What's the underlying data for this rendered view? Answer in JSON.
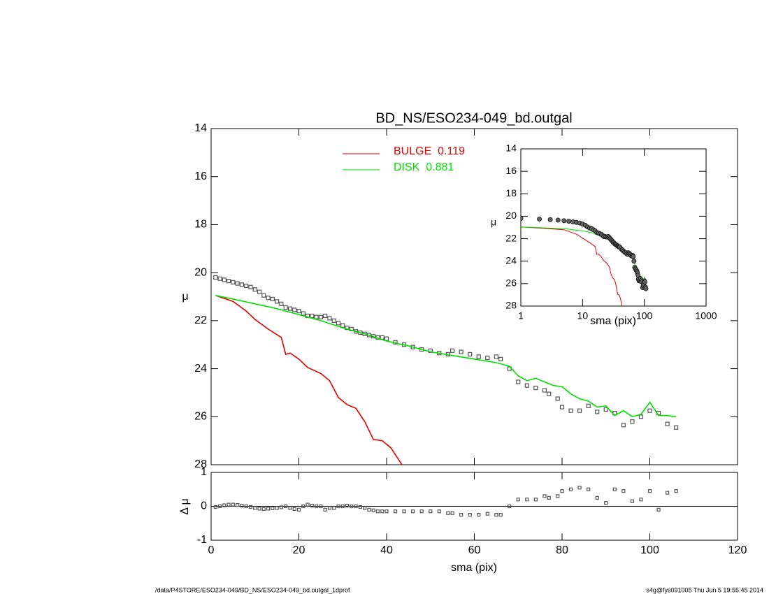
{
  "chart_data": [
    {
      "type": "line",
      "title": "BD_NS/ESO234-049_bd.outgal",
      "ylabel": "μ",
      "xlim": [
        0,
        120
      ],
      "xticks": [
        0,
        20,
        40,
        60,
        80,
        100,
        120
      ],
      "xtick_labels": false,
      "ylim": [
        14,
        28
      ],
      "yticks": [
        14,
        16,
        18,
        20,
        22,
        24,
        26,
        28
      ],
      "y_inverted": true,
      "series": [
        {
          "marker": "square",
          "color": "#555555",
          "x": [
            1,
            2,
            3,
            4,
            5,
            6,
            7,
            8,
            9,
            10,
            11,
            12,
            13,
            14,
            15,
            16,
            17,
            18,
            19,
            20,
            21,
            22,
            23,
            24,
            25,
            26,
            27,
            28,
            29,
            30,
            31,
            32,
            33,
            34,
            35,
            36,
            37,
            38,
            39,
            40,
            42,
            44,
            46,
            48,
            50,
            52,
            54,
            55,
            57,
            59,
            61,
            63,
            65,
            66,
            68,
            70,
            72,
            74,
            76,
            77,
            79,
            80,
            82,
            84,
            86,
            88,
            90,
            92,
            94,
            96,
            98,
            100,
            102,
            104,
            106
          ],
          "values": [
            20.2,
            20.25,
            20.3,
            20.35,
            20.4,
            20.45,
            20.5,
            20.55,
            20.6,
            20.7,
            20.8,
            20.95,
            21.05,
            21.1,
            21.2,
            21.3,
            21.45,
            21.5,
            21.55,
            21.6,
            21.7,
            21.8,
            21.8,
            21.85,
            21.85,
            21.8,
            21.9,
            22.0,
            22.1,
            22.2,
            22.3,
            22.35,
            22.45,
            22.5,
            22.55,
            22.6,
            22.65,
            22.7,
            22.7,
            22.75,
            22.9,
            23.0,
            23.1,
            23.2,
            23.25,
            23.35,
            23.4,
            23.25,
            23.3,
            23.4,
            23.5,
            23.55,
            23.5,
            23.6,
            24.0,
            24.55,
            24.7,
            24.8,
            24.9,
            25.05,
            25.25,
            25.6,
            25.75,
            25.75,
            25.55,
            25.8,
            25.7,
            25.85,
            26.35,
            26.2,
            26.0,
            25.75,
            25.85,
            26.3,
            26.45
          ]
        },
        {
          "name": "BULGE  0.119",
          "color": "#e00000",
          "x": [
            1,
            5,
            8,
            10,
            13,
            16,
            17,
            18,
            20,
            22,
            25,
            27,
            29,
            31,
            33,
            35,
            37,
            39,
            41,
            43.5
          ],
          "values": [
            20.95,
            21.2,
            21.6,
            21.95,
            22.35,
            22.7,
            23.4,
            23.35,
            23.6,
            23.95,
            24.2,
            24.5,
            25.2,
            25.5,
            25.65,
            26.2,
            26.95,
            27.0,
            27.3,
            28.0
          ]
        },
        {
          "name": "DISK  0.881",
          "color": "#00e000",
          "x": [
            1,
            5,
            10,
            15,
            20,
            25,
            30,
            35,
            40,
            45,
            50,
            55,
            60,
            65,
            68,
            70,
            72,
            74,
            76,
            78,
            80,
            82,
            84,
            86,
            88,
            90,
            92,
            94,
            96,
            98,
            100,
            102,
            104,
            106
          ],
          "values": [
            20.95,
            21.1,
            21.3,
            21.5,
            21.75,
            22.0,
            22.3,
            22.55,
            22.85,
            23.05,
            23.3,
            23.45,
            23.6,
            23.75,
            23.9,
            24.3,
            24.5,
            24.4,
            24.55,
            24.7,
            24.75,
            25.05,
            25.25,
            25.35,
            25.6,
            25.55,
            25.95,
            25.75,
            26.0,
            25.9,
            25.4,
            25.95,
            25.95,
            26.0
          ]
        }
      ]
    },
    {
      "type": "scatter",
      "ylabel": "Δ μ",
      "xlabel": "sma (pix)",
      "xlim": [
        0,
        120
      ],
      "xticks": [
        0,
        20,
        40,
        60,
        80,
        100,
        120
      ],
      "ylim": [
        -1,
        1
      ],
      "yticks": [
        -1,
        0,
        1
      ],
      "color": "#555555",
      "x": [
        1,
        2,
        3,
        4,
        5,
        6,
        7,
        8,
        9,
        10,
        11,
        12,
        13,
        14,
        15,
        16,
        17,
        18,
        19,
        20,
        21,
        22,
        23,
        24,
        25,
        26,
        27,
        28,
        29,
        30,
        31,
        32,
        33,
        34,
        35,
        36,
        37,
        38,
        39,
        40,
        42,
        44,
        46,
        48,
        50,
        52,
        54,
        55,
        57,
        59,
        61,
        63,
        65,
        66,
        68,
        70,
        72,
        74,
        76,
        77,
        79,
        80,
        82,
        84,
        86,
        88,
        90,
        92,
        94,
        96,
        98,
        100,
        102,
        104,
        106
      ],
      "values": [
        -0.02,
        0.0,
        0.03,
        0.05,
        0.05,
        0.04,
        0.02,
        0.0,
        -0.02,
        -0.05,
        -0.07,
        -0.08,
        -0.07,
        -0.06,
        -0.05,
        -0.03,
        0.0,
        -0.05,
        -0.08,
        -0.1,
        0.0,
        0.05,
        0.02,
        0.0,
        0.0,
        -0.1,
        -0.05,
        -0.05,
        0.0,
        0.0,
        0.02,
        0.0,
        0.0,
        -0.02,
        -0.05,
        -0.1,
        -0.12,
        -0.15,
        -0.15,
        -0.15,
        -0.15,
        -0.15,
        -0.15,
        -0.15,
        -0.15,
        -0.15,
        -0.2,
        -0.2,
        -0.25,
        -0.25,
        -0.25,
        -0.22,
        -0.25,
        -0.25,
        0.0,
        0.2,
        0.2,
        0.2,
        0.3,
        0.25,
        0.3,
        0.45,
        0.5,
        0.55,
        0.5,
        0.25,
        0.1,
        0.5,
        0.45,
        0.15,
        0.2,
        0.45,
        -0.1,
        0.4,
        0.45
      ]
    },
    {
      "type": "line",
      "ylabel": "μ",
      "xlabel": "sma (pix)",
      "log_x": true,
      "xlim": [
        1,
        1000
      ],
      "xticks": [
        1,
        10,
        100,
        1000
      ],
      "ylim": [
        14,
        28
      ],
      "yticks": [
        14,
        16,
        18,
        20,
        22,
        24,
        26,
        28
      ],
      "y_inverted": true
    }
  ],
  "footer": {
    "left": "/data/P4STORE/ESO234-049/BD_NS/ESO234-049_bd.outgal_1dprof",
    "right": "s4g@fys091005  Thu Jun  5 19:55:45 2014"
  }
}
